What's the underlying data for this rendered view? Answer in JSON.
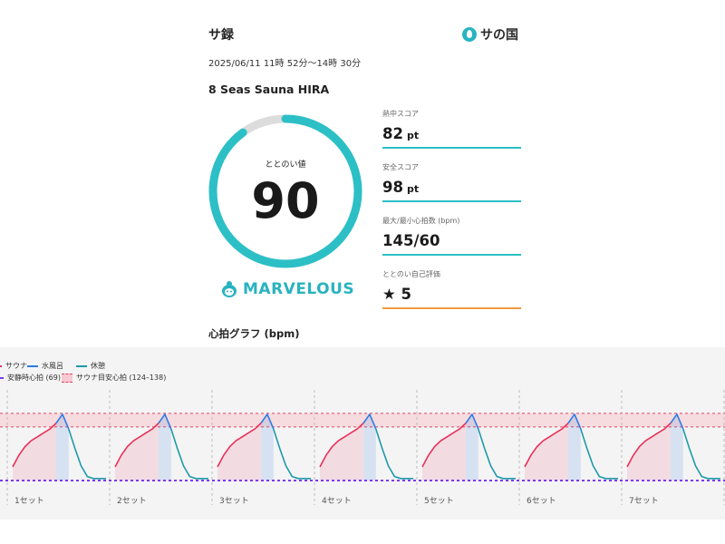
{
  "header": {
    "title": "サ録",
    "logo_text": "サの国",
    "date": "2025/06/11 11時 52分〜14時 30分",
    "facility": "8 Seas Sauna HIRA"
  },
  "score": {
    "label": "ととのい値",
    "value": "90",
    "max": 100,
    "rating": "MARVELOUS",
    "ring_color": "#2cc0c6",
    "ring_track_color": "#dcdcdc"
  },
  "stats": [
    {
      "label": "熱中スコア",
      "value": "82",
      "unit": "pt",
      "line_color": "#2cc0c6"
    },
    {
      "label": "安全スコア",
      "value": "98",
      "unit": "pt",
      "line_color": "#2cc0c6"
    },
    {
      "label": "最大/最小心拍数 (bpm)",
      "value": "145/60",
      "unit": "",
      "line_color": "#2cc0c6"
    },
    {
      "label": "ととのい自己評価",
      "value": "★ 5",
      "unit": "",
      "line_color": "#f29a3c"
    }
  ],
  "graph": {
    "title": "心拍グラフ (bpm)",
    "legend": {
      "sauna": "サウナ",
      "cold": "水風呂",
      "rest": "休憩",
      "resting_hr": "安静時心拍 (69)",
      "target_hr": "サウナ目安心拍 (124–138)"
    },
    "colors": {
      "sauna": "#e8325a",
      "cold": "#2f7de1",
      "rest": "#1e9aa8",
      "other": "#8a8a8a",
      "resting_line": "#7c3aed",
      "target_band": "#f7c9d1",
      "target_line": "#e0435f"
    }
  },
  "chart_data": {
    "type": "line",
    "ylabel": "bpm",
    "ylim": [
      55,
      150
    ],
    "resting_hr": 69,
    "target_band": [
      124,
      138
    ],
    "sets": [
      "1セット",
      "2セット",
      "3セット",
      "4セット",
      "5セット",
      "6セット",
      "7セット"
    ],
    "phase_series": [
      {
        "phase": "sauna",
        "name": "サウナ",
        "points": [
          [
            0,
            83
          ],
          [
            1,
            95
          ],
          [
            2,
            104
          ],
          [
            3,
            110
          ],
          [
            4,
            114
          ],
          [
            5,
            118
          ],
          [
            6,
            122
          ],
          [
            7,
            128
          ]
        ]
      },
      {
        "phase": "cold",
        "name": "水風呂",
        "points": [
          [
            7,
            128
          ],
          [
            8,
            137
          ],
          [
            9,
            122
          ]
        ]
      },
      {
        "phase": "rest",
        "name": "休憩",
        "points": [
          [
            9,
            122
          ],
          [
            10,
            102
          ],
          [
            11,
            84
          ],
          [
            12,
            73
          ],
          [
            13,
            71
          ],
          [
            14,
            71
          ],
          [
            15,
            71
          ]
        ]
      }
    ]
  }
}
